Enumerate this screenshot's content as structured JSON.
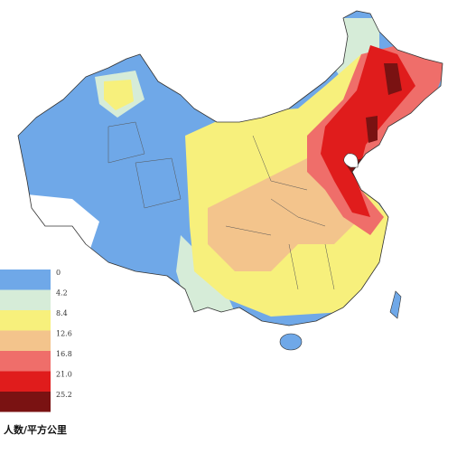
{
  "legend": {
    "title": "人数/平方公里",
    "items": [
      {
        "label": "0",
        "color": "#6fa8e8"
      },
      {
        "label": "4.2",
        "color": "#d6ecd8"
      },
      {
        "label": "8.4",
        "color": "#f7f07c"
      },
      {
        "label": "12.6",
        "color": "#f3c48c"
      },
      {
        "label": "16.8",
        "color": "#ef6e6a"
      },
      {
        "label": "21.0",
        "color": "#e01c1c"
      },
      {
        "label": "25.2",
        "color": "#7a1212"
      }
    ]
  }
}
